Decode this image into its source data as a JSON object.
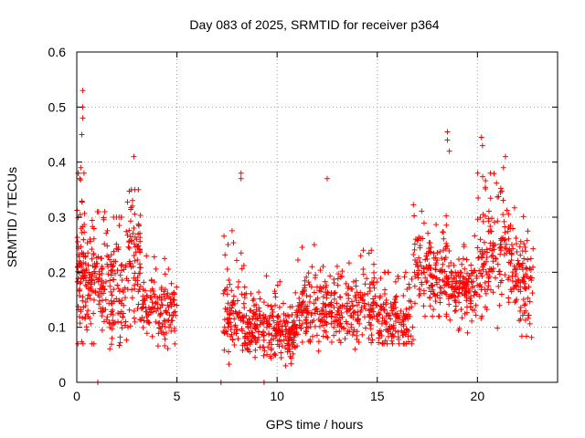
{
  "chart_data": {
    "type": "scatter",
    "title": "Day 083 of 2025, SRMTID for receiver p364",
    "xlabel": "GPS time / hours",
    "ylabel": "SRMTID / TECUs",
    "xlim": [
      0,
      24
    ],
    "ylim": [
      0,
      0.6
    ],
    "xticks": [
      0,
      5,
      10,
      15,
      20
    ],
    "xtick_labels": [
      "0",
      "5",
      "10",
      "15",
      "20"
    ],
    "yticks": [
      0,
      0.1,
      0.2,
      0.3,
      0.4,
      0.5,
      0.6
    ],
    "ytick_labels": [
      "0",
      "0.1",
      "0.2",
      "0.3",
      "0.4",
      "0.5",
      "0.6"
    ],
    "grid": true,
    "marker": "+",
    "color": "#ff0000",
    "seed": 83,
    "segments": [
      {
        "start": 0.0,
        "end": 0.4,
        "n": 70,
        "base": 0.21,
        "spread": 0.09,
        "min": 0.07,
        "max": 0.38
      },
      {
        "start": 0.4,
        "end": 1.5,
        "n": 120,
        "base": 0.18,
        "spread": 0.07,
        "min": 0.07,
        "max": 0.31
      },
      {
        "start": 1.5,
        "end": 2.5,
        "n": 100,
        "base": 0.17,
        "spread": 0.07,
        "min": 0.06,
        "max": 0.3
      },
      {
        "start": 2.5,
        "end": 3.2,
        "n": 80,
        "base": 0.22,
        "spread": 0.08,
        "min": 0.1,
        "max": 0.35
      },
      {
        "start": 3.2,
        "end": 5.0,
        "n": 140,
        "base": 0.13,
        "spread": 0.04,
        "min": 0.06,
        "max": 0.26
      },
      {
        "start": 7.3,
        "end": 8.5,
        "n": 110,
        "base": 0.12,
        "spread": 0.05,
        "min": 0.03,
        "max": 0.28
      },
      {
        "start": 8.5,
        "end": 10.0,
        "n": 140,
        "base": 0.1,
        "spread": 0.04,
        "min": 0.03,
        "max": 0.22
      },
      {
        "start": 10.0,
        "end": 11.0,
        "n": 110,
        "base": 0.09,
        "spread": 0.035,
        "min": 0.03,
        "max": 0.19
      },
      {
        "start": 11.0,
        "end": 13.0,
        "n": 170,
        "base": 0.13,
        "spread": 0.045,
        "min": 0.05,
        "max": 0.25
      },
      {
        "start": 13.0,
        "end": 15.0,
        "n": 160,
        "base": 0.13,
        "spread": 0.045,
        "min": 0.06,
        "max": 0.24
      },
      {
        "start": 15.0,
        "end": 16.8,
        "n": 150,
        "base": 0.11,
        "spread": 0.035,
        "min": 0.07,
        "max": 0.2
      },
      {
        "start": 16.8,
        "end": 18.5,
        "n": 150,
        "base": 0.2,
        "spread": 0.06,
        "min": 0.12,
        "max": 0.36
      },
      {
        "start": 18.5,
        "end": 20.0,
        "n": 140,
        "base": 0.17,
        "spread": 0.04,
        "min": 0.09,
        "max": 0.3
      },
      {
        "start": 20.0,
        "end": 21.8,
        "n": 160,
        "base": 0.23,
        "spread": 0.07,
        "min": 0.08,
        "max": 0.38
      },
      {
        "start": 21.8,
        "end": 22.8,
        "n": 90,
        "base": 0.18,
        "spread": 0.05,
        "min": 0.08,
        "max": 0.32
      }
    ],
    "spikes": [
      {
        "x": 0.3,
        "y": 0.53
      },
      {
        "x": 0.3,
        "y": 0.5
      },
      {
        "x": 0.3,
        "y": 0.48
      },
      {
        "x": 0.25,
        "y": 0.45
      },
      {
        "x": 0.2,
        "y": 0.39
      },
      {
        "x": 0.15,
        "y": 0.37
      },
      {
        "x": 2.85,
        "y": 0.41
      },
      {
        "x": 8.2,
        "y": 0.38
      },
      {
        "x": 8.2,
        "y": 0.37
      },
      {
        "x": 12.5,
        "y": 0.37
      },
      {
        "x": 18.5,
        "y": 0.455
      },
      {
        "x": 18.5,
        "y": 0.44
      },
      {
        "x": 18.6,
        "y": 0.42
      },
      {
        "x": 20.2,
        "y": 0.445
      },
      {
        "x": 20.25,
        "y": 0.43
      },
      {
        "x": 21.4,
        "y": 0.41
      },
      {
        "x": 21.3,
        "y": 0.39
      },
      {
        "x": 1.05,
        "y": 0.0
      },
      {
        "x": 7.2,
        "y": 0.0
      },
      {
        "x": 9.35,
        "y": 0.0
      }
    ]
  }
}
